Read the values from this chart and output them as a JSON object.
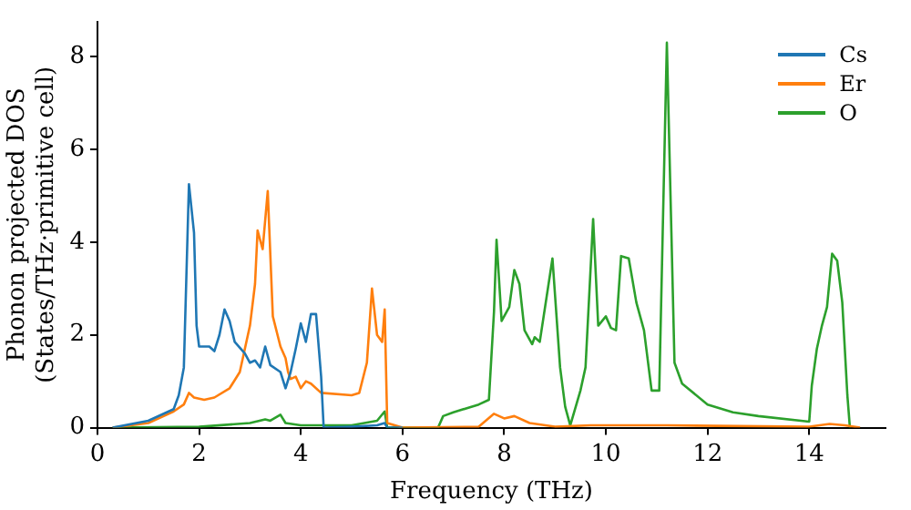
{
  "chart_data": {
    "type": "line",
    "xlabel": "Frequency (THz)",
    "ylabel": "Phonon projected DOS\n(States/THz·primitive cell)",
    "xlim": [
      0,
      15.5
    ],
    "ylim": [
      0,
      8.75
    ],
    "xticks": [
      0,
      2,
      4,
      6,
      8,
      10,
      12,
      14
    ],
    "yticks": [
      0,
      2,
      4,
      6,
      8
    ],
    "grid": false,
    "legend": "top right",
    "marker": "none",
    "line_style": "solid",
    "series": [
      {
        "name": "Cs",
        "color": "#1f77b4",
        "x": [
          0.3,
          1.0,
          1.5,
          1.6,
          1.7,
          1.8,
          1.9,
          1.95,
          2.0,
          2.2,
          2.3,
          2.4,
          2.5,
          2.6,
          2.7,
          2.9,
          3.0,
          3.1,
          3.2,
          3.3,
          3.4,
          3.6,
          3.7,
          3.8,
          3.9,
          4.0,
          4.1,
          4.2,
          4.3,
          4.4,
          4.45,
          5.0,
          5.5,
          5.65,
          5.7,
          6.0
        ],
        "values": [
          0.0,
          0.15,
          0.4,
          0.7,
          1.3,
          5.25,
          4.2,
          2.2,
          1.75,
          1.75,
          1.65,
          2.0,
          2.55,
          2.3,
          1.85,
          1.6,
          1.4,
          1.45,
          1.3,
          1.75,
          1.35,
          1.2,
          0.85,
          1.2,
          1.7,
          2.25,
          1.85,
          2.45,
          2.45,
          1.1,
          0.0,
          0.02,
          0.05,
          0.1,
          0.0,
          0.0
        ]
      },
      {
        "name": "Er",
        "color": "#ff7f0e",
        "x": [
          0.3,
          1.0,
          1.5,
          1.7,
          1.8,
          1.9,
          2.1,
          2.3,
          2.6,
          2.8,
          3.0,
          3.1,
          3.15,
          3.25,
          3.35,
          3.45,
          3.6,
          3.7,
          3.75,
          3.8,
          3.9,
          4.0,
          4.1,
          4.2,
          4.4,
          5.0,
          5.15,
          5.3,
          5.4,
          5.5,
          5.6,
          5.65,
          5.7,
          6.0,
          7.5,
          7.8,
          8.0,
          8.2,
          8.5,
          9.0,
          9.7,
          11.2,
          14.0,
          14.4,
          14.7,
          15.0
        ],
        "values": [
          0.0,
          0.1,
          0.35,
          0.5,
          0.75,
          0.65,
          0.6,
          0.65,
          0.85,
          1.2,
          2.2,
          3.1,
          4.25,
          3.85,
          5.1,
          2.4,
          1.75,
          1.5,
          1.2,
          1.05,
          1.1,
          0.85,
          1.0,
          0.95,
          0.75,
          0.7,
          0.75,
          1.4,
          3.0,
          2.0,
          1.85,
          2.55,
          0.1,
          0.0,
          0.02,
          0.3,
          0.2,
          0.25,
          0.1,
          0.02,
          0.05,
          0.05,
          0.02,
          0.08,
          0.05,
          0.0
        ]
      },
      {
        "name": "O",
        "color": "#2ca02c",
        "x": [
          0.3,
          2.0,
          3.0,
          3.3,
          3.4,
          3.6,
          3.7,
          4.0,
          5.0,
          5.5,
          5.65,
          5.7,
          6.7,
          6.8,
          7.0,
          7.5,
          7.7,
          7.8,
          7.85,
          7.95,
          8.1,
          8.2,
          8.3,
          8.4,
          8.55,
          8.6,
          8.7,
          8.95,
          9.1,
          9.2,
          9.3,
          9.5,
          9.6,
          9.75,
          9.85,
          10.0,
          10.1,
          10.2,
          10.3,
          10.45,
          10.6,
          10.75,
          10.9,
          11.05,
          11.2,
          11.35,
          11.5,
          12.0,
          12.5,
          13.0,
          14.0,
          14.05,
          14.15,
          14.25,
          14.35,
          14.45,
          14.55,
          14.65,
          14.75,
          14.8
        ],
        "values": [
          0.0,
          0.02,
          0.1,
          0.18,
          0.15,
          0.28,
          0.1,
          0.05,
          0.05,
          0.15,
          0.35,
          0.0,
          0.0,
          0.25,
          0.33,
          0.5,
          0.6,
          2.5,
          4.05,
          2.3,
          2.6,
          3.4,
          3.1,
          2.1,
          1.8,
          1.95,
          1.85,
          3.65,
          1.3,
          0.45,
          0.05,
          0.8,
          1.3,
          4.5,
          2.2,
          2.4,
          2.15,
          2.1,
          3.7,
          3.65,
          2.7,
          2.1,
          0.8,
          0.8,
          8.3,
          1.4,
          0.95,
          0.5,
          0.33,
          0.25,
          0.13,
          0.9,
          1.7,
          2.2,
          2.6,
          3.75,
          3.6,
          2.7,
          0.7,
          0.0
        ]
      }
    ]
  }
}
